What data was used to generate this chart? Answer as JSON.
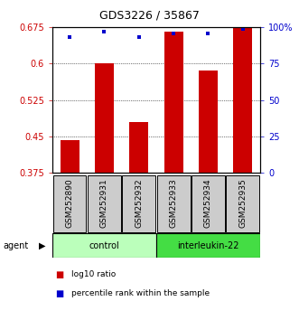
{
  "title": "GDS3226 / 35867",
  "samples": [
    "GSM252890",
    "GSM252931",
    "GSM252932",
    "GSM252933",
    "GSM252934",
    "GSM252935"
  ],
  "log10_ratio": [
    0.443,
    0.6,
    0.48,
    0.665,
    0.585,
    0.675
  ],
  "percentile_rank": [
    93,
    97,
    93,
    96,
    96,
    99
  ],
  "ylim_left": [
    0.375,
    0.675
  ],
  "ylim_right": [
    0,
    100
  ],
  "yticks_left": [
    0.375,
    0.45,
    0.525,
    0.6,
    0.675
  ],
  "yticks_right": [
    0,
    25,
    50,
    75,
    100
  ],
  "ytick_labels_right": [
    "0",
    "25",
    "50",
    "75",
    "100%"
  ],
  "bar_color": "#cc0000",
  "dot_color": "#0000cc",
  "bar_bottom": 0.375,
  "groups": [
    {
      "label": "control",
      "samples": [
        0,
        1,
        2
      ],
      "color": "#bbffbb"
    },
    {
      "label": "interleukin-22",
      "samples": [
        3,
        4,
        5
      ],
      "color": "#44dd44"
    }
  ],
  "group_label": "agent",
  "legend_bar_label": "log10 ratio",
  "legend_dot_label": "percentile rank within the sample",
  "background_color": "#ffffff",
  "label_area_color": "#cccccc",
  "title_fontsize": 9,
  "tick_fontsize": 7,
  "sample_fontsize": 6.5
}
